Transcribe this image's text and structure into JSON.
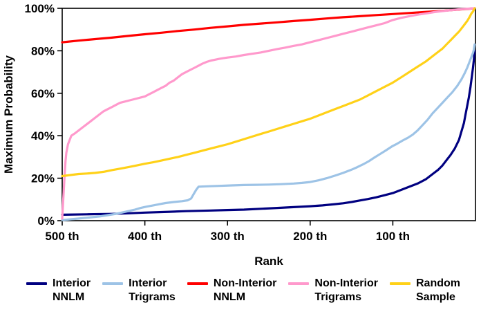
{
  "chart_data": {
    "type": "line",
    "title": "",
    "xlabel": "Rank",
    "ylabel": "Maximum Probability",
    "grid": false,
    "legend_position": "bottom",
    "x_axis": {
      "min": 0,
      "max": 500,
      "direction": "descending-left-to-right",
      "ticks": [
        {
          "value": 500,
          "label": "500 th"
        },
        {
          "value": 400,
          "label": "400 th"
        },
        {
          "value": 300,
          "label": "300 th"
        },
        {
          "value": 200,
          "label": "200 th"
        },
        {
          "value": 100,
          "label": "100 th"
        }
      ]
    },
    "y_axis": {
      "min": 0,
      "max": 100,
      "ticks": [
        {
          "value": 0,
          "label": "0%"
        },
        {
          "value": 20,
          "label": "20%"
        },
        {
          "value": 40,
          "label": "40%"
        },
        {
          "value": 60,
          "label": "60%"
        },
        {
          "value": 80,
          "label": "80%"
        },
        {
          "value": 100,
          "label": "100%"
        }
      ]
    },
    "series": [
      {
        "name": "Interior NNLM",
        "legend_line1": "Interior",
        "legend_line2": "NNLM",
        "color": "#000080",
        "points": [
          [
            500,
            2.8
          ],
          [
            470,
            3
          ],
          [
            440,
            3.2
          ],
          [
            420,
            3.5
          ],
          [
            400,
            3.8
          ],
          [
            370,
            4.2
          ],
          [
            350,
            4.5
          ],
          [
            320,
            4.8
          ],
          [
            300,
            5
          ],
          [
            280,
            5.2
          ],
          [
            260,
            5.6
          ],
          [
            240,
            6
          ],
          [
            220,
            6.4
          ],
          [
            200,
            6.8
          ],
          [
            185,
            7.2
          ],
          [
            170,
            7.8
          ],
          [
            160,
            8.2
          ],
          [
            150,
            8.8
          ],
          [
            140,
            9.5
          ],
          [
            130,
            10.2
          ],
          [
            120,
            11
          ],
          [
            110,
            12
          ],
          [
            100,
            13
          ],
          [
            90,
            14.5
          ],
          [
            80,
            16
          ],
          [
            70,
            17.5
          ],
          [
            65,
            18.5
          ],
          [
            60,
            19.5
          ],
          [
            55,
            21
          ],
          [
            50,
            22.5
          ],
          [
            45,
            24
          ],
          [
            40,
            26
          ],
          [
            35,
            28.5
          ],
          [
            30,
            31
          ],
          [
            25,
            34
          ],
          [
            20,
            38
          ],
          [
            17,
            42
          ],
          [
            14,
            46
          ],
          [
            12,
            50
          ],
          [
            10,
            54
          ],
          [
            8,
            58
          ],
          [
            6,
            63
          ],
          [
            5,
            66
          ],
          [
            4,
            69
          ],
          [
            3,
            72
          ],
          [
            2,
            75.5
          ],
          [
            1,
            80
          ]
        ]
      },
      {
        "name": "Interior Trigrams",
        "legend_line1": "Interior",
        "legend_line2": "Trigrams",
        "color": "#9DC3E6",
        "points": [
          [
            500,
            0.3
          ],
          [
            485,
            0.8
          ],
          [
            470,
            1.4
          ],
          [
            455,
            2
          ],
          [
            445,
            2.6
          ],
          [
            435,
            3.2
          ],
          [
            428,
            3.8
          ],
          [
            420,
            4.5
          ],
          [
            412,
            5.2
          ],
          [
            405,
            6
          ],
          [
            398,
            6.6
          ],
          [
            390,
            7.2
          ],
          [
            382,
            7.8
          ],
          [
            375,
            8.3
          ],
          [
            365,
            8.8
          ],
          [
            355,
            9.2
          ],
          [
            348,
            9.6
          ],
          [
            344,
            10.5
          ],
          [
            341,
            12.5
          ],
          [
            338,
            14.5
          ],
          [
            335,
            16
          ],
          [
            325,
            16.2
          ],
          [
            310,
            16.4
          ],
          [
            295,
            16.6
          ],
          [
            280,
            16.8
          ],
          [
            265,
            16.9
          ],
          [
            250,
            17
          ],
          [
            235,
            17.2
          ],
          [
            220,
            17.5
          ],
          [
            210,
            17.8
          ],
          [
            200,
            18.2
          ],
          [
            190,
            19
          ],
          [
            180,
            20
          ],
          [
            170,
            21.2
          ],
          [
            160,
            22.5
          ],
          [
            150,
            24
          ],
          [
            143,
            25.2
          ],
          [
            136,
            26.5
          ],
          [
            129,
            28
          ],
          [
            122,
            29.8
          ],
          [
            115,
            31.5
          ],
          [
            108,
            33.2
          ],
          [
            101,
            35
          ],
          [
            95,
            36.2
          ],
          [
            88,
            37.8
          ],
          [
            82,
            39
          ],
          [
            76,
            40.5
          ],
          [
            70,
            42.5
          ],
          [
            64,
            45
          ],
          [
            58,
            47.5
          ],
          [
            52,
            50.5
          ],
          [
            46,
            53
          ],
          [
            40,
            55.5
          ],
          [
            34,
            58
          ],
          [
            28,
            60.5
          ],
          [
            22,
            63.5
          ],
          [
            17,
            66.5
          ],
          [
            13,
            69.5
          ],
          [
            10,
            72
          ],
          [
            7,
            75
          ],
          [
            5,
            77
          ],
          [
            3,
            79
          ],
          [
            2,
            80.5
          ],
          [
            1,
            83
          ]
        ]
      },
      {
        "name": "Non-Interior NNLM",
        "legend_line1": "Non-Interior",
        "legend_line2": "NNLM",
        "color": "#FF0000",
        "points": [
          [
            500,
            84
          ],
          [
            480,
            84.8
          ],
          [
            460,
            85.5
          ],
          [
            440,
            86.2
          ],
          [
            420,
            87
          ],
          [
            400,
            87.8
          ],
          [
            380,
            88.5
          ],
          [
            360,
            89.3
          ],
          [
            340,
            90
          ],
          [
            320,
            90.8
          ],
          [
            300,
            91.5
          ],
          [
            280,
            92.2
          ],
          [
            260,
            92.8
          ],
          [
            240,
            93.4
          ],
          [
            220,
            94
          ],
          [
            200,
            94.6
          ],
          [
            180,
            95.2
          ],
          [
            160,
            95.8
          ],
          [
            140,
            96.3
          ],
          [
            120,
            96.8
          ],
          [
            100,
            97.3
          ],
          [
            80,
            97.8
          ],
          [
            60,
            98.3
          ],
          [
            40,
            98.8
          ],
          [
            20,
            99.4
          ],
          [
            10,
            99.7
          ],
          [
            1,
            100
          ]
        ]
      },
      {
        "name": "Non-Interior Trigrams",
        "legend_line1": "Non-Interior",
        "legend_line2": "Trigrams",
        "color": "#FF99CC",
        "points": [
          [
            500,
            1
          ],
          [
            499,
            8
          ],
          [
            498,
            15
          ],
          [
            497,
            22
          ],
          [
            496,
            28
          ],
          [
            495,
            32
          ],
          [
            493,
            36
          ],
          [
            491,
            38
          ],
          [
            489,
            40
          ],
          [
            485,
            41
          ],
          [
            480,
            42.5
          ],
          [
            475,
            44
          ],
          [
            470,
            45.5
          ],
          [
            465,
            47
          ],
          [
            460,
            48.5
          ],
          [
            455,
            50
          ],
          [
            450,
            51.5
          ],
          [
            445,
            52.5
          ],
          [
            440,
            53.5
          ],
          [
            435,
            54.5
          ],
          [
            430,
            55.5
          ],
          [
            425,
            56
          ],
          [
            420,
            56.5
          ],
          [
            415,
            57
          ],
          [
            410,
            57.5
          ],
          [
            405,
            58
          ],
          [
            400,
            58.5
          ],
          [
            395,
            59.5
          ],
          [
            390,
            60.5
          ],
          [
            385,
            61.5
          ],
          [
            380,
            62.5
          ],
          [
            375,
            63.5
          ],
          [
            370,
            65
          ],
          [
            365,
            66
          ],
          [
            360,
            67.5
          ],
          [
            355,
            69
          ],
          [
            350,
            70
          ],
          [
            345,
            71
          ],
          [
            340,
            72
          ],
          [
            335,
            73
          ],
          [
            330,
            74
          ],
          [
            325,
            74.8
          ],
          [
            320,
            75.4
          ],
          [
            315,
            75.8
          ],
          [
            310,
            76.2
          ],
          [
            305,
            76.5
          ],
          [
            300,
            76.8
          ],
          [
            290,
            77.3
          ],
          [
            280,
            78
          ],
          [
            270,
            78.6
          ],
          [
            260,
            79.2
          ],
          [
            250,
            80
          ],
          [
            240,
            80.8
          ],
          [
            230,
            81.5
          ],
          [
            220,
            82.3
          ],
          [
            210,
            83
          ],
          [
            200,
            84
          ],
          [
            190,
            85
          ],
          [
            180,
            86
          ],
          [
            170,
            87
          ],
          [
            160,
            88
          ],
          [
            150,
            89
          ],
          [
            140,
            90
          ],
          [
            130,
            91
          ],
          [
            120,
            92
          ],
          [
            110,
            93
          ],
          [
            100,
            94.5
          ],
          [
            90,
            95.5
          ],
          [
            80,
            96.3
          ],
          [
            70,
            97
          ],
          [
            60,
            97.6
          ],
          [
            50,
            98.2
          ],
          [
            40,
            98.7
          ],
          [
            30,
            99.1
          ],
          [
            20,
            99.5
          ],
          [
            10,
            99.8
          ],
          [
            1,
            100
          ]
        ]
      },
      {
        "name": "Random Sample",
        "legend_line1": "Random",
        "legend_line2": "Sample",
        "color": "#FFD118",
        "points": [
          [
            500,
            21
          ],
          [
            490,
            21.5
          ],
          [
            480,
            22
          ],
          [
            470,
            22.2
          ],
          [
            460,
            22.5
          ],
          [
            450,
            23
          ],
          [
            440,
            23.8
          ],
          [
            430,
            24.5
          ],
          [
            420,
            25.2
          ],
          [
            410,
            26
          ],
          [
            400,
            26.8
          ],
          [
            390,
            27.5
          ],
          [
            380,
            28.3
          ],
          [
            370,
            29.2
          ],
          [
            360,
            30
          ],
          [
            350,
            31
          ],
          [
            340,
            32
          ],
          [
            330,
            33
          ],
          [
            320,
            34
          ],
          [
            310,
            35
          ],
          [
            300,
            36
          ],
          [
            290,
            37.2
          ],
          [
            280,
            38.4
          ],
          [
            270,
            39.6
          ],
          [
            260,
            40.8
          ],
          [
            250,
            42
          ],
          [
            240,
            43.2
          ],
          [
            230,
            44.4
          ],
          [
            220,
            45.6
          ],
          [
            210,
            46.8
          ],
          [
            200,
            48
          ],
          [
            190,
            49.5
          ],
          [
            180,
            51
          ],
          [
            170,
            52.5
          ],
          [
            160,
            54
          ],
          [
            150,
            55.5
          ],
          [
            140,
            57
          ],
          [
            130,
            59
          ],
          [
            120,
            61
          ],
          [
            110,
            63
          ],
          [
            100,
            65
          ],
          [
            90,
            67.5
          ],
          [
            80,
            70
          ],
          [
            70,
            72.5
          ],
          [
            60,
            75
          ],
          [
            50,
            78
          ],
          [
            45,
            79.5
          ],
          [
            40,
            81
          ],
          [
            35,
            83
          ],
          [
            30,
            85
          ],
          [
            25,
            87
          ],
          [
            20,
            89
          ],
          [
            15,
            91.5
          ],
          [
            10,
            94
          ],
          [
            7,
            96
          ],
          [
            5,
            97.5
          ],
          [
            3,
            98.5
          ],
          [
            1,
            100
          ]
        ]
      }
    ]
  }
}
